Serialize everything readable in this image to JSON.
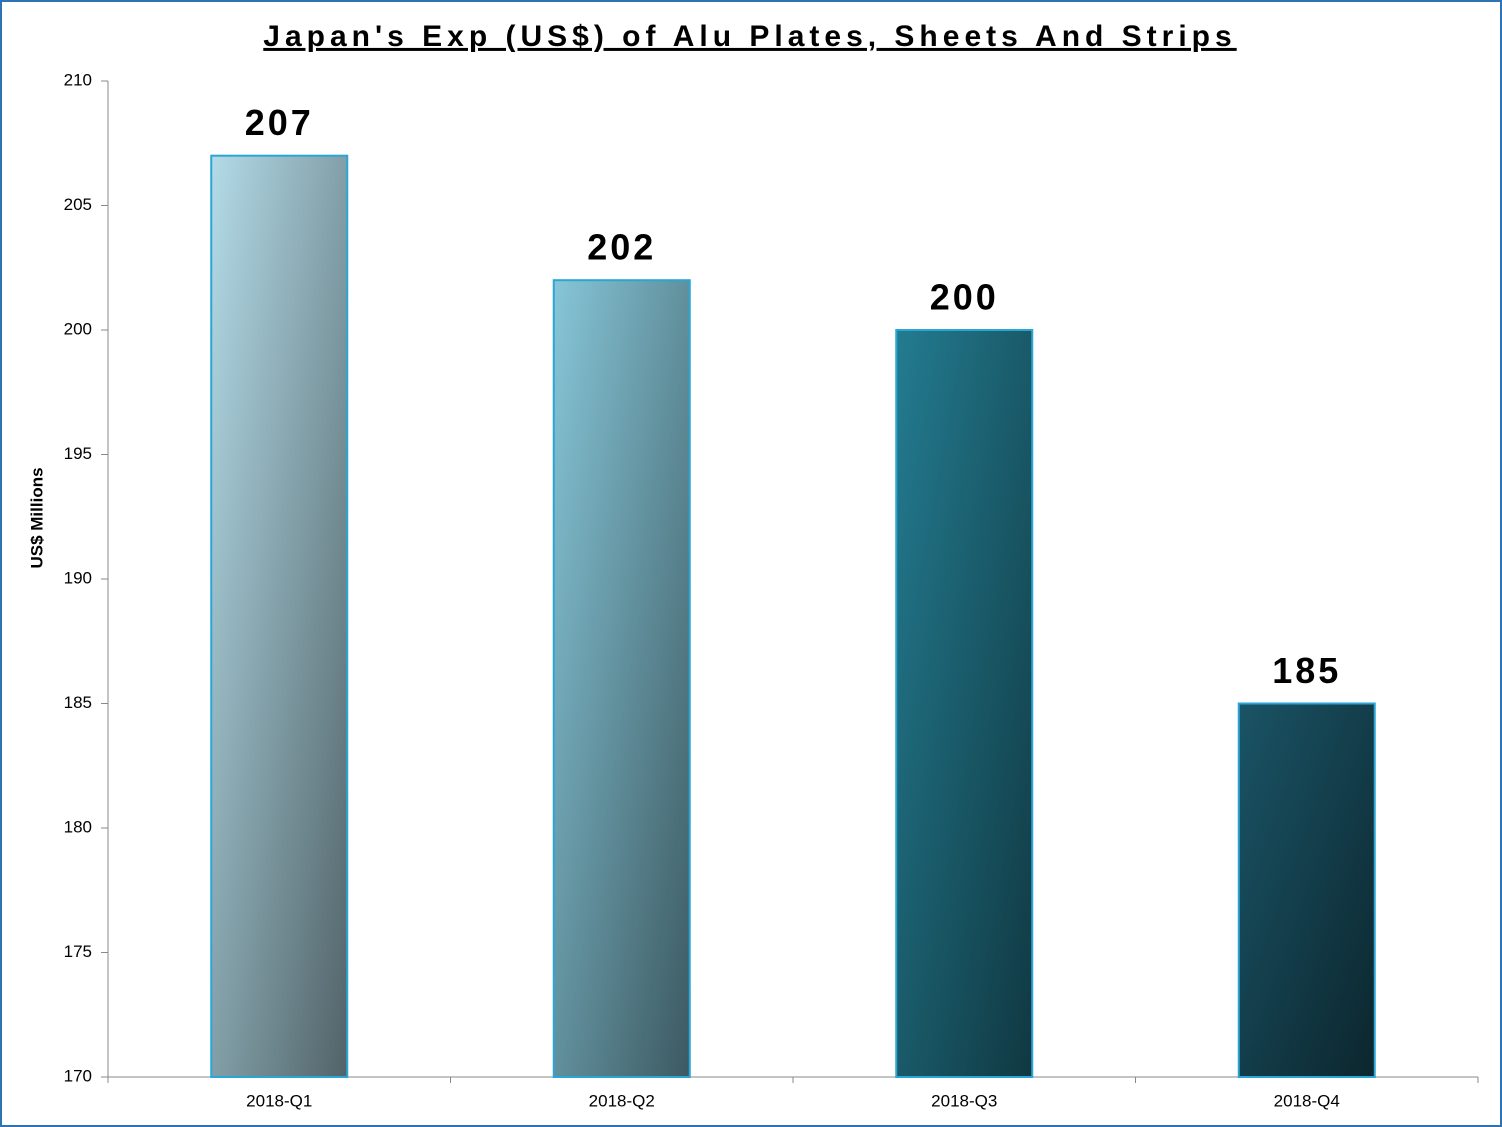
{
  "chart_data": {
    "type": "bar",
    "title": "Japan's Exp (US$) of Alu Plates, Sheets And Strips",
    "ylabel": "US$ Millions",
    "categories": [
      "2018-Q1",
      "2018-Q2",
      "2018-Q3",
      "2018-Q4"
    ],
    "values": [
      207,
      202,
      200,
      185
    ],
    "colors": [
      "#b3dbe8",
      "#86c6d8",
      "#237c91",
      "#1a5466"
    ],
    "edge_color": "#2aa6d6",
    "ylim": [
      170,
      210
    ],
    "yticks": [
      170,
      175,
      180,
      185,
      190,
      195,
      200,
      205,
      210
    ],
    "grid": false
  }
}
